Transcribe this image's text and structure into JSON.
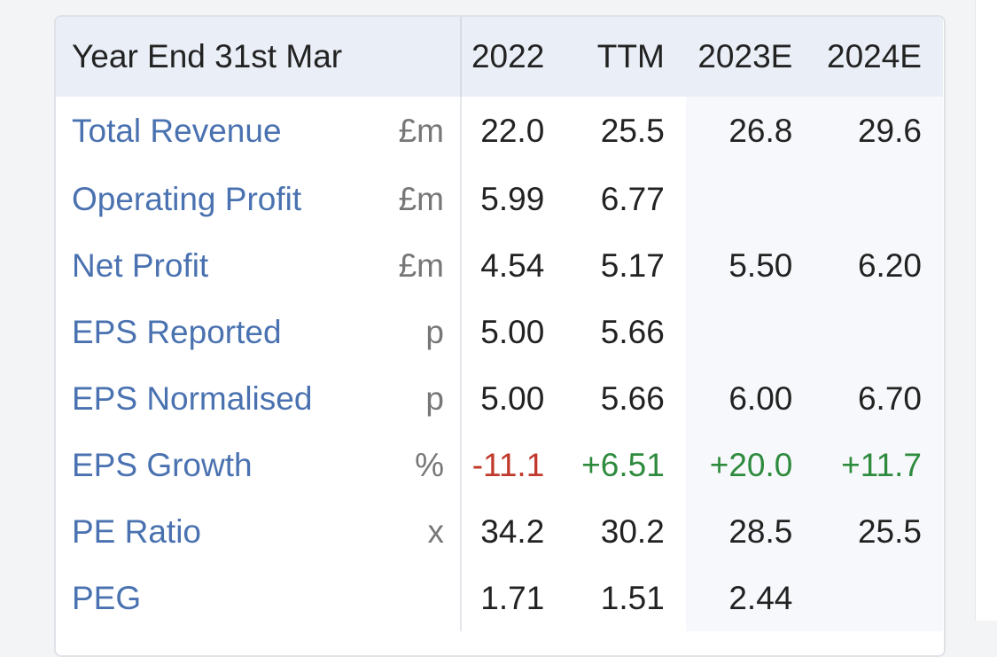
{
  "table": {
    "header": {
      "label": "Year End 31st Mar",
      "cols": [
        "2022",
        "TTM",
        "2023E",
        "2024E"
      ]
    },
    "rows": [
      {
        "label": "Total Revenue",
        "unit": "£m",
        "values": [
          "22.0",
          "25.5",
          "26.8",
          "29.6"
        ]
      },
      {
        "label": "Operating Profit",
        "unit": "£m",
        "values": [
          "5.99",
          "6.77",
          "",
          ""
        ]
      },
      {
        "label": "Net Profit",
        "unit": "£m",
        "values": [
          "4.54",
          "5.17",
          "5.50",
          "6.20"
        ]
      },
      {
        "label": "EPS Reported",
        "unit": "p",
        "values": [
          "5.00",
          "5.66",
          "",
          ""
        ]
      },
      {
        "label": "EPS Normalised",
        "unit": "p",
        "values": [
          "5.00",
          "5.66",
          "6.00",
          "6.70"
        ]
      },
      {
        "label": "EPS Growth",
        "unit": "%",
        "values": [
          "-11.1",
          "+6.51",
          "+20.0",
          "+11.7"
        ]
      },
      {
        "label": "PE Ratio",
        "unit": "x",
        "values": [
          "34.2",
          "30.2",
          "28.5",
          "25.5"
        ]
      },
      {
        "label": "PEG",
        "unit": "",
        "values": [
          "1.71",
          "1.51",
          "2.44",
          ""
        ]
      }
    ]
  },
  "colors": {
    "label_blue": "#4a72b0",
    "negative_red": "#c0392b",
    "positive_green": "#2e8b3d",
    "header_bg": "#e9eef7"
  }
}
